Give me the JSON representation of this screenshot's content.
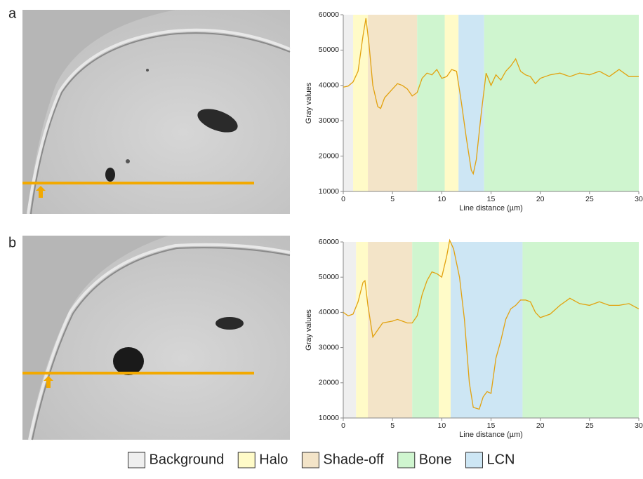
{
  "panels": [
    "a",
    "b"
  ],
  "legend": [
    {
      "name": "Background",
      "color": "#efefef"
    },
    {
      "name": "Halo",
      "color": "#fffbc8"
    },
    {
      "name": "Shade-off",
      "color": "#f3e4c8"
    },
    {
      "name": "Bone",
      "color": "#cff5cf"
    },
    {
      "name": "LCN",
      "color": "#cde6f4"
    }
  ],
  "chart_data": [
    {
      "type": "line",
      "x_label": "Line distance (µm)",
      "y_label": "Gray values",
      "xlim": [
        0,
        30
      ],
      "xticks": [
        0,
        5,
        10,
        15,
        20,
        25,
        30
      ],
      "ylim": [
        10000,
        60000
      ],
      "yticks": [
        10000,
        20000,
        30000,
        40000,
        50000,
        60000
      ],
      "bands": [
        {
          "name": "Background",
          "from": 0,
          "to": 1.0
        },
        {
          "name": "Halo",
          "from": 1.0,
          "to": 2.5
        },
        {
          "name": "Shade-off",
          "from": 2.5,
          "to": 7.5
        },
        {
          "name": "Bone",
          "from": 7.5,
          "to": 10.3
        },
        {
          "name": "Halo",
          "from": 10.3,
          "to": 11.7
        },
        {
          "name": "LCN",
          "from": 11.7,
          "to": 14.3
        },
        {
          "name": "Bone",
          "from": 14.3,
          "to": 30
        }
      ],
      "series": [
        {
          "color": "#e2a20f",
          "x": [
            0,
            0.5,
            1,
            1.5,
            2,
            2.3,
            2.6,
            3,
            3.5,
            3.8,
            4.2,
            5,
            5.5,
            6,
            6.5,
            7,
            7.5,
            8,
            8.5,
            9,
            9.5,
            10,
            10.5,
            11,
            11.5,
            12,
            12.5,
            13,
            13.2,
            13.5,
            14,
            14.5,
            15,
            15.5,
            16,
            16.5,
            17,
            17.5,
            18,
            18.5,
            19,
            19.5,
            20,
            21,
            22,
            23,
            24,
            25,
            26,
            27,
            28,
            29,
            30
          ],
          "values": [
            39500,
            39800,
            41000,
            44000,
            54000,
            59000,
            52000,
            40000,
            34000,
            33500,
            36500,
            39000,
            40500,
            40000,
            39000,
            37000,
            38000,
            42000,
            43500,
            43000,
            44500,
            42000,
            42500,
            44500,
            44000,
            35000,
            25000,
            16000,
            15000,
            19000,
            32000,
            43500,
            40000,
            43000,
            41500,
            44000,
            45500,
            47500,
            44000,
            43000,
            42500,
            40500,
            42000,
            43000,
            43500,
            42500,
            43500,
            43000,
            44000,
            42500,
            44500,
            42500,
            42500
          ]
        }
      ]
    },
    {
      "type": "line",
      "x_label": "Line distance (µm)",
      "y_label": "Gray values",
      "xlim": [
        0,
        30
      ],
      "xticks": [
        0,
        5,
        10,
        15,
        20,
        25,
        30
      ],
      "ylim": [
        10000,
        60000
      ],
      "yticks": [
        10000,
        20000,
        30000,
        40000,
        50000,
        60000
      ],
      "bands": [
        {
          "name": "Background",
          "from": 0,
          "to": 1.3
        },
        {
          "name": "Halo",
          "from": 1.3,
          "to": 2.5
        },
        {
          "name": "Shade-off",
          "from": 2.5,
          "to": 7.0
        },
        {
          "name": "Bone",
          "from": 7.0,
          "to": 9.7
        },
        {
          "name": "Halo",
          "from": 9.7,
          "to": 10.9
        },
        {
          "name": "LCN",
          "from": 10.9,
          "to": 18.2
        },
        {
          "name": "Bone",
          "from": 18.2,
          "to": 30
        }
      ],
      "series": [
        {
          "color": "#e2a20f",
          "x": [
            0,
            0.5,
            1,
            1.5,
            2,
            2.2,
            2.5,
            3,
            3.5,
            4,
            5,
            5.5,
            6,
            6.5,
            7,
            7.5,
            8,
            8.5,
            9,
            9.5,
            10,
            10.5,
            10.8,
            11.2,
            11.8,
            12.3,
            12.8,
            13.2,
            13.8,
            14.2,
            14.6,
            15,
            15.5,
            16,
            16.5,
            17,
            17.5,
            18,
            18.5,
            19,
            19.5,
            20,
            21,
            22,
            23,
            24,
            25,
            26,
            27,
            28,
            29,
            30
          ],
          "values": [
            40000,
            39000,
            39500,
            43000,
            48500,
            49000,
            42000,
            33000,
            35000,
            37000,
            37500,
            38000,
            37500,
            37000,
            37000,
            39000,
            45000,
            49000,
            51500,
            51000,
            50000,
            56000,
            60500,
            58000,
            50000,
            38000,
            20000,
            13000,
            12500,
            16000,
            17500,
            17000,
            27000,
            32000,
            38000,
            41000,
            42000,
            43500,
            43500,
            43000,
            40000,
            38500,
            39500,
            42000,
            44000,
            42500,
            42000,
            43000,
            42000,
            42000,
            42500,
            41000
          ]
        }
      ]
    }
  ]
}
